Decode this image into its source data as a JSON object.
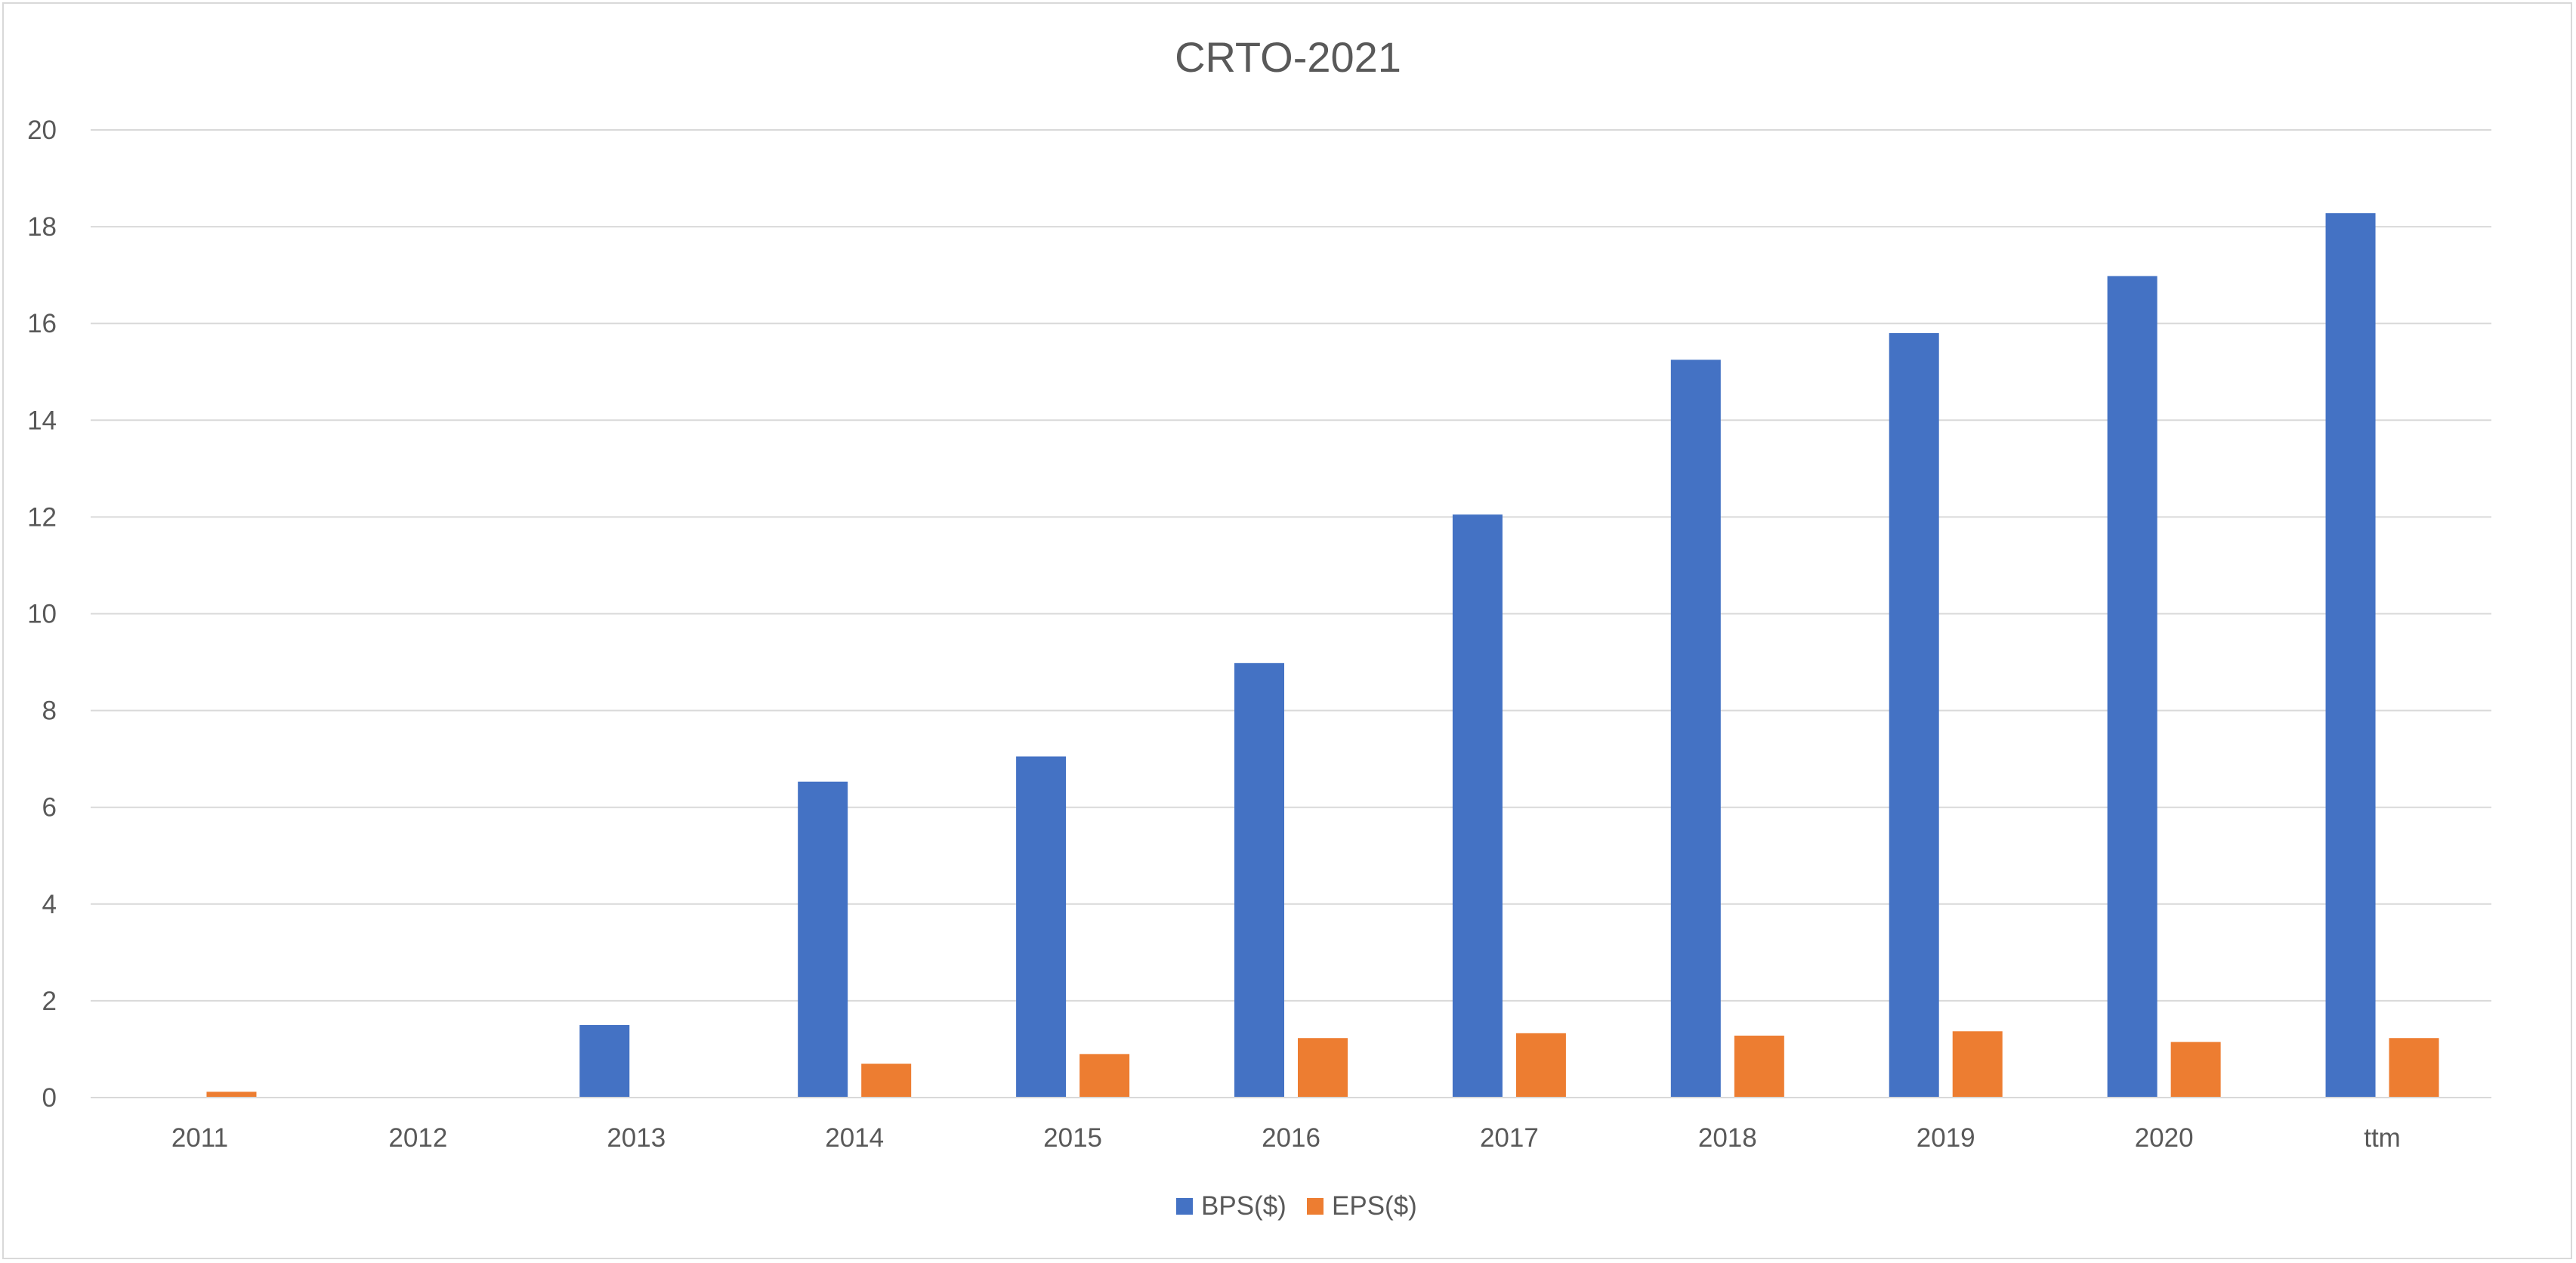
{
  "chart_data": {
    "type": "bar",
    "title": "CRTO-2021",
    "xlabel": "",
    "ylabel": "",
    "categories": [
      "2011",
      "2012",
      "2013",
      "2014",
      "2015",
      "2016",
      "2017",
      "2018",
      "2019",
      "2020",
      "ttm"
    ],
    "series": [
      {
        "name": "BPS($)",
        "color": "#4472C4",
        "values": [
          null,
          null,
          1.5,
          6.53,
          7.05,
          8.98,
          12.05,
          15.25,
          15.8,
          16.98,
          18.28
        ]
      },
      {
        "name": "EPS($)",
        "color": "#ED7D31",
        "values": [
          0.12,
          null,
          null,
          0.7,
          0.9,
          1.23,
          1.33,
          1.28,
          1.37,
          1.15,
          1.23
        ]
      }
    ],
    "ylim": [
      0,
      20
    ],
    "yticks": [
      "0",
      "2",
      "4",
      "6",
      "8",
      "10",
      "12",
      "14",
      "16",
      "18",
      "20"
    ],
    "grid": true,
    "legend_position": "bottom"
  }
}
